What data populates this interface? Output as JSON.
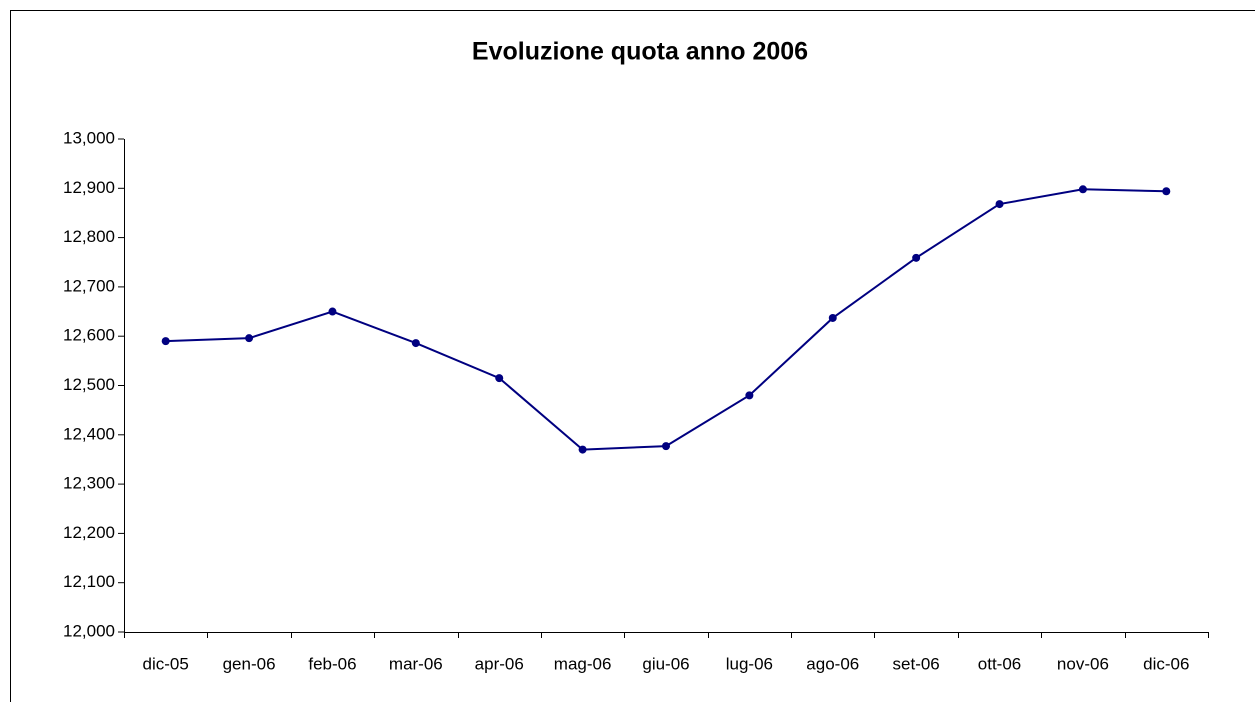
{
  "chart_data": {
    "type": "line",
    "title": "Evoluzione quota anno 2006",
    "categories": [
      "dic-05",
      "gen-06",
      "feb-06",
      "mar-06",
      "apr-06",
      "mag-06",
      "giu-06",
      "lug-06",
      "ago-06",
      "set-06",
      "ott-06",
      "nov-06",
      "dic-06"
    ],
    "values": [
      12590,
      12596,
      12650,
      12586,
      12515,
      12370,
      12377,
      12480,
      12637,
      12759,
      12868,
      12898,
      12894
    ],
    "color": "#000080",
    "ylim": [
      12000,
      13000
    ],
    "yticks": [
      {
        "value": 12000,
        "label": "12,000"
      },
      {
        "value": 12100,
        "label": "12,100"
      },
      {
        "value": 12200,
        "label": "12,200"
      },
      {
        "value": 12300,
        "label": "12,300"
      },
      {
        "value": 12400,
        "label": "12,400"
      },
      {
        "value": 12500,
        "label": "12,500"
      },
      {
        "value": 12600,
        "label": "12,600"
      },
      {
        "value": 12700,
        "label": "12,700"
      },
      {
        "value": 12800,
        "label": "12,800"
      },
      {
        "value": 12900,
        "label": "12,900"
      },
      {
        "value": 13000,
        "label": "13,000"
      }
    ],
    "grid": false
  }
}
